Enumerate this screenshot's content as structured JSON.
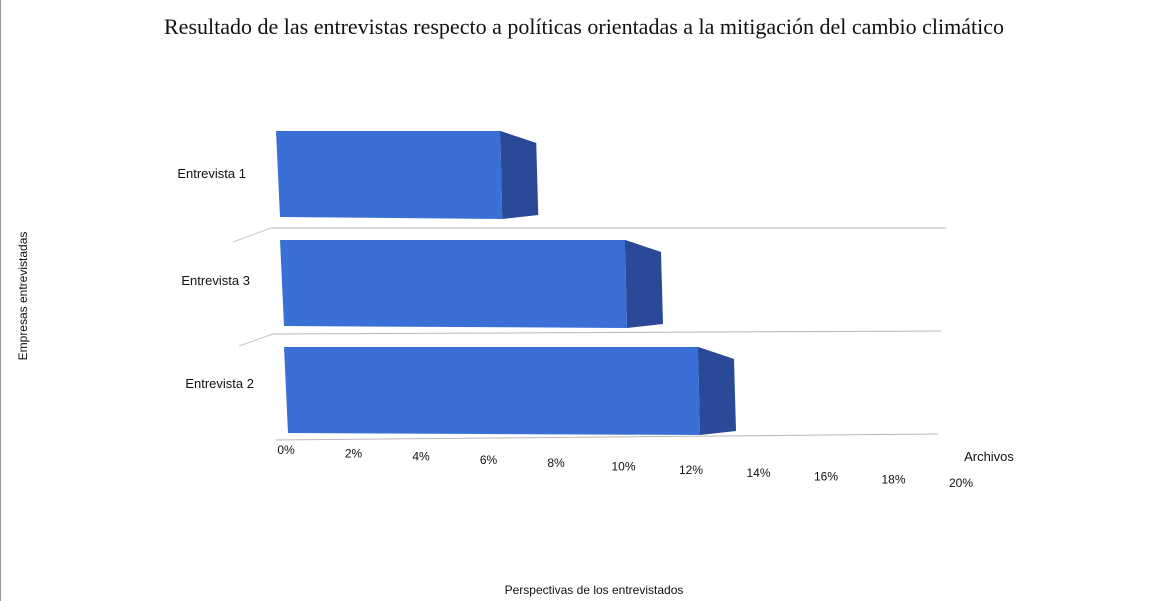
{
  "chart_data": {
    "type": "bar",
    "orientation": "horizontal",
    "title": "Resultado de las entrevistas respecto a políticas orientadas a la mitigación del cambio climático",
    "xlabel": "Perspectivas de los entrevistados",
    "ylabel": "Empresas entrevistadas",
    "categories": [
      "Entrevista 1",
      "Entrevista 3",
      "Entrevista 2"
    ],
    "series": [
      {
        "name": "Archivos",
        "values": [
          6.5,
          10.0,
          12.0
        ]
      }
    ],
    "x_ticks": [
      "0%",
      "2%",
      "4%",
      "6%",
      "8%",
      "10%",
      "12%",
      "14%",
      "16%",
      "18%",
      "20%"
    ],
    "xlim": [
      0,
      20
    ],
    "bar_color": "#3a6fd6",
    "bar_side_color": "#2a4a98",
    "bar_top_color": "#2f58b4",
    "grid": true,
    "perspective": "3d"
  }
}
